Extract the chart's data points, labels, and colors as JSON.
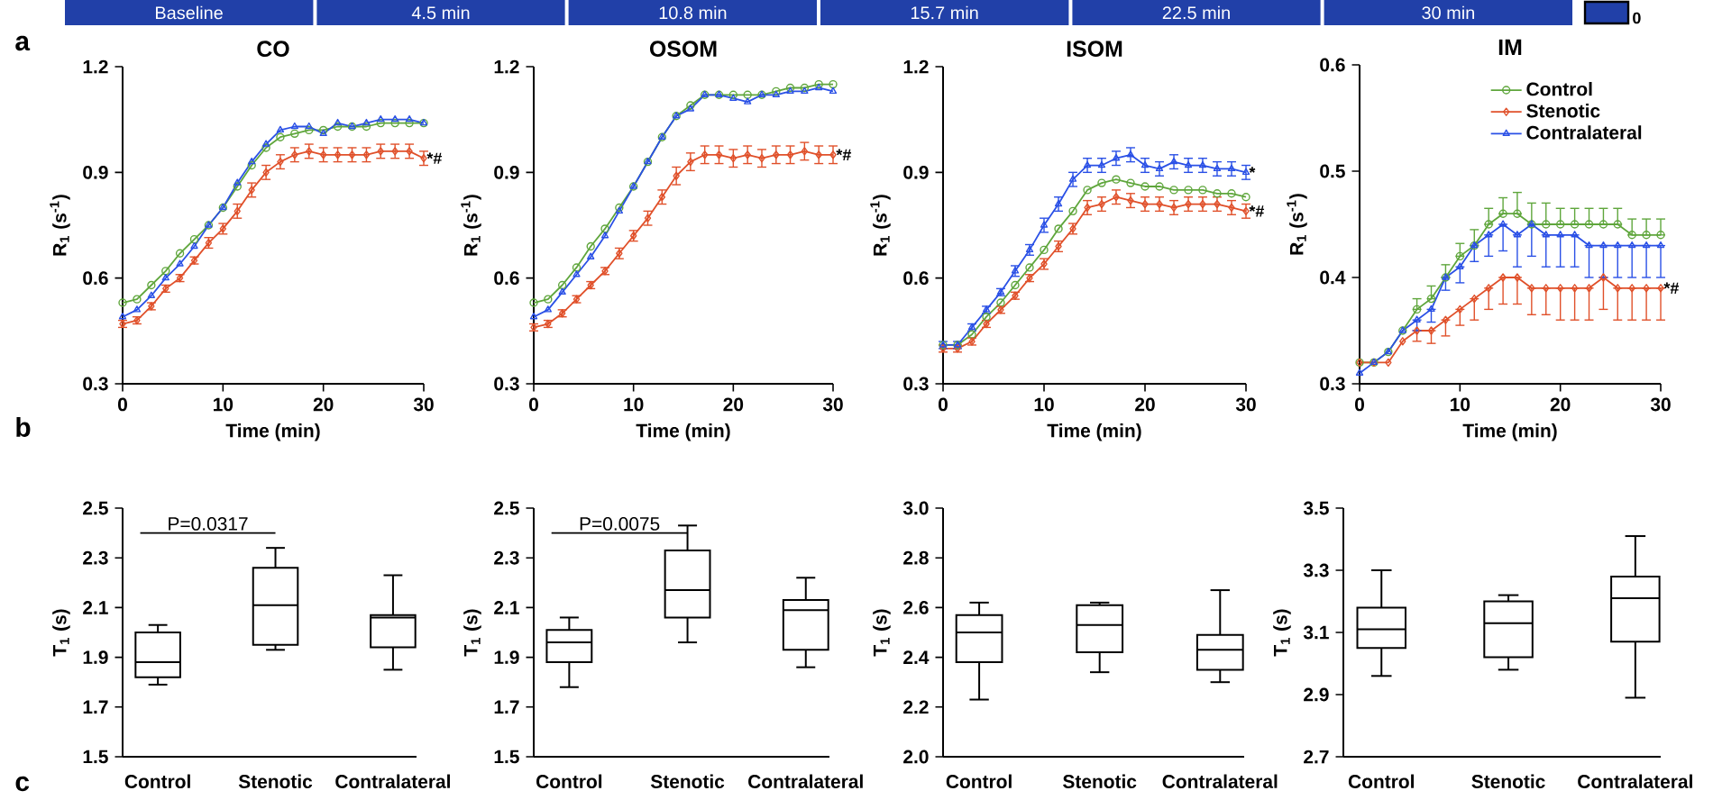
{
  "chart_data": [
    {
      "type": "other",
      "annotations": [
        "Baseline",
        "4.5 min",
        "10.8 min",
        "15.7 min",
        "22.5 min",
        "30 min",
        "0",
        "a",
        "b",
        "c"
      ]
    },
    {
      "type": "line",
      "title": "CO",
      "xlabel": "Time (min)",
      "ylabel": "R$_{1}$ (s$^{-1}$)",
      "xlim": [
        0,
        30
      ],
      "ylim": [
        0.3,
        1.2
      ],
      "xticks": [
        0,
        10,
        20,
        30
      ],
      "yticks": [
        0.3,
        0.6,
        0.9,
        1.2
      ],
      "x": [
        0,
        1.43,
        2.86,
        4.29,
        5.71,
        7.14,
        8.57,
        10,
        11.43,
        12.86,
        14.29,
        15.71,
        17.14,
        18.57,
        20,
        21.43,
        22.86,
        24.29,
        25.71,
        27.14,
        28.57,
        30
      ],
      "series": [
        {
          "color": "#5fa63c",
          "marker": "circle",
          "values": [
            0.53,
            0.54,
            0.58,
            0.62,
            0.67,
            0.71,
            0.75,
            0.8,
            0.86,
            0.92,
            0.97,
            1.0,
            1.01,
            1.02,
            1.02,
            1.03,
            1.03,
            1.03,
            1.04,
            1.04,
            1.04,
            1.04
          ]
        },
        {
          "color": "#e0502a",
          "marker": "diamond",
          "values": [
            0.47,
            0.48,
            0.52,
            0.57,
            0.6,
            0.65,
            0.7,
            0.74,
            0.79,
            0.85,
            0.9,
            0.93,
            0.95,
            0.96,
            0.95,
            0.95,
            0.95,
            0.95,
            0.96,
            0.96,
            0.96,
            0.94
          ],
          "errors": [
            0.01,
            0.01,
            0.01,
            0.01,
            0.01,
            0.01,
            0.015,
            0.015,
            0.02,
            0.02,
            0.02,
            0.02,
            0.02,
            0.02,
            0.02,
            0.02,
            0.02,
            0.02,
            0.02,
            0.02,
            0.02,
            0.02
          ]
        },
        {
          "color": "#2a50e6",
          "marker": "triangle",
          "values": [
            0.49,
            0.51,
            0.55,
            0.6,
            0.64,
            0.69,
            0.75,
            0.8,
            0.87,
            0.93,
            0.98,
            1.02,
            1.03,
            1.03,
            1.01,
            1.04,
            1.03,
            1.04,
            1.05,
            1.05,
            1.05,
            1.04
          ]
        }
      ],
      "annotations": [
        "*#"
      ]
    },
    {
      "type": "line",
      "title": "OSOM",
      "xlabel": "Time (min)",
      "ylabel": "R$_{1}$ (s$^{-1}$)",
      "xlim": [
        0,
        30
      ],
      "ylim": [
        0.3,
        1.2
      ],
      "xticks": [
        0,
        10,
        20,
        30
      ],
      "yticks": [
        0.3,
        0.6,
        0.9,
        1.2
      ],
      "x": [
        0,
        1.43,
        2.86,
        4.29,
        5.71,
        7.14,
        8.57,
        10,
        11.43,
        12.86,
        14.29,
        15.71,
        17.14,
        18.57,
        20,
        21.43,
        22.86,
        24.29,
        25.71,
        27.14,
        28.57,
        30
      ],
      "series": [
        {
          "color": "#5fa63c",
          "marker": "circle",
          "values": [
            0.53,
            0.54,
            0.58,
            0.63,
            0.69,
            0.74,
            0.8,
            0.86,
            0.93,
            1.0,
            1.06,
            1.09,
            1.12,
            1.12,
            1.12,
            1.12,
            1.12,
            1.13,
            1.14,
            1.14,
            1.15,
            1.15
          ]
        },
        {
          "color": "#e0502a",
          "marker": "diamond",
          "values": [
            0.46,
            0.47,
            0.5,
            0.54,
            0.58,
            0.62,
            0.67,
            0.72,
            0.77,
            0.83,
            0.89,
            0.93,
            0.95,
            0.95,
            0.94,
            0.95,
            0.94,
            0.95,
            0.95,
            0.96,
            0.95,
            0.95
          ],
          "errors": [
            0.01,
            0.01,
            0.01,
            0.01,
            0.01,
            0.01,
            0.015,
            0.015,
            0.02,
            0.02,
            0.025,
            0.025,
            0.025,
            0.025,
            0.025,
            0.025,
            0.025,
            0.025,
            0.025,
            0.025,
            0.025,
            0.025
          ]
        },
        {
          "color": "#2a50e6",
          "marker": "triangle",
          "values": [
            0.49,
            0.51,
            0.56,
            0.61,
            0.66,
            0.72,
            0.79,
            0.86,
            0.93,
            1.0,
            1.06,
            1.08,
            1.12,
            1.12,
            1.11,
            1.1,
            1.12,
            1.12,
            1.13,
            1.13,
            1.14,
            1.13
          ]
        }
      ],
      "annotations": [
        "*#"
      ]
    },
    {
      "type": "line",
      "title": "ISOM",
      "xlabel": "Time (min)",
      "ylabel": "R$_{1}$ (s$^{-1}$)",
      "xlim": [
        0,
        30
      ],
      "ylim": [
        0.3,
        1.2
      ],
      "xticks": [
        0,
        10,
        20,
        30
      ],
      "yticks": [
        0.3,
        0.6,
        0.9,
        1.2
      ],
      "x": [
        0,
        1.43,
        2.86,
        4.29,
        5.71,
        7.14,
        8.57,
        10,
        11.43,
        12.86,
        14.29,
        15.71,
        17.14,
        18.57,
        20,
        21.43,
        22.86,
        24.29,
        25.71,
        27.14,
        28.57,
        30
      ],
      "series": [
        {
          "color": "#5fa63c",
          "marker": "circle",
          "values": [
            0.41,
            0.41,
            0.44,
            0.49,
            0.53,
            0.58,
            0.63,
            0.68,
            0.74,
            0.79,
            0.85,
            0.87,
            0.88,
            0.87,
            0.86,
            0.86,
            0.85,
            0.85,
            0.85,
            0.84,
            0.84,
            0.83
          ]
        },
        {
          "color": "#e0502a",
          "marker": "diamond",
          "values": [
            0.4,
            0.4,
            0.42,
            0.47,
            0.51,
            0.55,
            0.6,
            0.64,
            0.69,
            0.74,
            0.8,
            0.81,
            0.83,
            0.82,
            0.81,
            0.81,
            0.8,
            0.81,
            0.81,
            0.81,
            0.8,
            0.79
          ],
          "errors": [
            0.01,
            0.01,
            0.01,
            0.01,
            0.01,
            0.01,
            0.01,
            0.015,
            0.015,
            0.015,
            0.02,
            0.02,
            0.02,
            0.02,
            0.02,
            0.02,
            0.02,
            0.02,
            0.02,
            0.02,
            0.02,
            0.02
          ]
        },
        {
          "color": "#2a50e6",
          "marker": "triangle",
          "values": [
            0.41,
            0.41,
            0.46,
            0.51,
            0.56,
            0.62,
            0.68,
            0.75,
            0.81,
            0.88,
            0.92,
            0.92,
            0.94,
            0.95,
            0.92,
            0.91,
            0.93,
            0.92,
            0.92,
            0.91,
            0.91,
            0.9
          ],
          "errors": [
            0.01,
            0.01,
            0.01,
            0.01,
            0.01,
            0.015,
            0.015,
            0.02,
            0.02,
            0.02,
            0.02,
            0.02,
            0.02,
            0.02,
            0.02,
            0.02,
            0.02,
            0.02,
            0.02,
            0.02,
            0.02,
            0.02
          ]
        }
      ],
      "annotations": [
        "*",
        "*#"
      ]
    },
    {
      "type": "line",
      "title": "IM",
      "xlabel": "Time (min)",
      "ylabel": "R$_{1}$ (s$^{-1}$)",
      "xlim": [
        0,
        30
      ],
      "ylim": [
        0.3,
        0.6
      ],
      "xticks": [
        0,
        10,
        20,
        30
      ],
      "yticks": [
        0.3,
        0.4,
        0.5,
        0.6
      ],
      "legend": "top right",
      "x": [
        0,
        1.43,
        2.86,
        4.29,
        5.71,
        7.14,
        8.57,
        10,
        11.43,
        12.86,
        14.29,
        15.71,
        17.14,
        18.57,
        20,
        21.43,
        22.86,
        24.29,
        25.71,
        27.14,
        28.57,
        30
      ],
      "series": [
        {
          "name": "Control",
          "color": "#5fa63c",
          "marker": "circle",
          "values": [
            0.32,
            0.32,
            0.33,
            0.35,
            0.37,
            0.38,
            0.4,
            0.42,
            0.43,
            0.45,
            0.46,
            0.46,
            0.45,
            0.45,
            0.45,
            0.45,
            0.45,
            0.45,
            0.45,
            0.44,
            0.44,
            0.44
          ],
          "errors": [
            null,
            null,
            null,
            null,
            [
              0.37,
              0.38
            ],
            [
              0.38,
              0.392
            ],
            [
              0.4,
              0.412
            ],
            [
              0.42,
              0.432
            ],
            [
              0.43,
              0.445
            ],
            [
              0.45,
              0.465
            ],
            [
              0.46,
              0.475
            ],
            [
              0.46,
              0.48
            ],
            [
              0.45,
              0.47
            ],
            [
              0.45,
              0.47
            ],
            [
              0.45,
              0.465
            ],
            [
              0.45,
              0.465
            ],
            [
              0.45,
              0.465
            ],
            [
              0.45,
              0.465
            ],
            [
              0.45,
              0.465
            ],
            [
              0.44,
              0.455
            ],
            [
              0.44,
              0.455
            ],
            [
              0.44,
              0.455
            ]
          ]
        },
        {
          "name": "Stenotic",
          "color": "#e0502a",
          "marker": "diamond",
          "values": [
            0.32,
            0.32,
            0.32,
            0.34,
            0.35,
            0.35,
            0.36,
            0.37,
            0.38,
            0.39,
            0.4,
            0.4,
            0.39,
            0.39,
            0.39,
            0.39,
            0.39,
            0.4,
            0.39,
            0.39,
            0.39,
            0.39
          ],
          "errors": [
            null,
            null,
            null,
            null,
            [
              0.34,
              0.35
            ],
            [
              0.338,
              0.35
            ],
            [
              0.345,
              0.36
            ],
            [
              0.355,
              0.37
            ],
            [
              0.36,
              0.38
            ],
            [
              0.37,
              0.39
            ],
            [
              0.375,
              0.4
            ],
            [
              0.375,
              0.4
            ],
            [
              0.365,
              0.39
            ],
            [
              0.365,
              0.39
            ],
            [
              0.36,
              0.39
            ],
            [
              0.36,
              0.39
            ],
            [
              0.36,
              0.39
            ],
            [
              0.37,
              0.4
            ],
            [
              0.36,
              0.39
            ],
            [
              0.36,
              0.39
            ],
            [
              0.36,
              0.39
            ],
            [
              0.36,
              0.39
            ]
          ]
        },
        {
          "name": "Contralateral",
          "color": "#2a50e6",
          "marker": "triangle",
          "values": [
            0.31,
            0.32,
            0.33,
            0.35,
            0.36,
            0.37,
            0.4,
            0.41,
            0.43,
            0.44,
            0.45,
            0.44,
            0.45,
            0.44,
            0.44,
            0.44,
            0.43,
            0.43,
            0.43,
            0.43,
            0.43,
            0.43
          ],
          "errors": [
            null,
            null,
            null,
            null,
            [
              0.35,
              0.36
            ],
            [
              0.358,
              0.37
            ],
            [
              0.388,
              0.4
            ],
            [
              0.395,
              0.41
            ],
            [
              0.415,
              0.43
            ],
            [
              0.42,
              0.44
            ],
            [
              0.425,
              0.45
            ],
            [
              0.41,
              0.44
            ],
            [
              0.42,
              0.45
            ],
            [
              0.41,
              0.44
            ],
            [
              0.41,
              0.44
            ],
            [
              0.41,
              0.44
            ],
            [
              0.4,
              0.43
            ],
            [
              0.4,
              0.43
            ],
            [
              0.4,
              0.43
            ],
            [
              0.4,
              0.43
            ],
            [
              0.4,
              0.43
            ],
            [
              0.4,
              0.43
            ]
          ]
        }
      ],
      "annotations": [
        "*#"
      ]
    },
    {
      "type": "box",
      "ylabel": "T$_{1}$ (s)",
      "categories": [
        "Control",
        "Stenotic",
        "Contralateral"
      ],
      "ylim": [
        1.5,
        2.5
      ],
      "yticks": [
        1.5,
        1.7,
        1.9,
        2.1,
        2.3,
        2.5
      ],
      "boxes": [
        {
          "low": 1.79,
          "q1": 1.82,
          "median": 1.88,
          "q3": 2.0,
          "high": 2.03
        },
        {
          "low": 1.93,
          "q1": 1.95,
          "median": 2.11,
          "q3": 2.26,
          "high": 2.34
        },
        {
          "low": 1.85,
          "q1": 1.94,
          "median": 2.06,
          "q3": 2.07,
          "high": 2.23
        }
      ],
      "annotations": [
        "P=0.0317"
      ]
    },
    {
      "type": "box",
      "ylabel": "T$_{1}$ (s)",
      "categories": [
        "Control",
        "Stenotic",
        "Contralateral"
      ],
      "ylim": [
        1.5,
        2.5
      ],
      "yticks": [
        1.5,
        1.7,
        1.9,
        2.1,
        2.3,
        2.5
      ],
      "boxes": [
        {
          "low": 1.78,
          "q1": 1.88,
          "median": 1.96,
          "q3": 2.01,
          "high": 2.06
        },
        {
          "low": 1.96,
          "q1": 2.06,
          "median": 2.17,
          "q3": 2.33,
          "high": 2.43
        },
        {
          "low": 1.86,
          "q1": 1.93,
          "median": 2.09,
          "q3": 2.13,
          "high": 2.22
        }
      ],
      "annotations": [
        "P=0.0075"
      ]
    },
    {
      "type": "box",
      "ylabel": "T$_{1}$ (s)",
      "categories": [
        "Control",
        "Stenotic",
        "Contralateral"
      ],
      "ylim": [
        2.0,
        3.0
      ],
      "yticks": [
        {
          "value": 2.0,
          "label": "2.0"
        },
        2.2,
        2.4,
        2.6,
        2.8,
        {
          "value": 3.0,
          "label": "3.0"
        }
      ],
      "boxes": [
        {
          "low": 2.23,
          "q1": 2.38,
          "median": 2.5,
          "q3": 2.57,
          "high": 2.62
        },
        {
          "low": 2.34,
          "q1": 2.42,
          "median": 2.53,
          "q3": 2.61,
          "high": 2.62
        },
        {
          "low": 2.3,
          "q1": 2.35,
          "median": 2.43,
          "q3": 2.49,
          "high": 2.67
        }
      ]
    },
    {
      "type": "box",
      "ylabel": "T$_{1}$ (s)",
      "categories": [
        "Control",
        "Stenotic",
        "Contralateral"
      ],
      "ylim": [
        2.7,
        3.5
      ],
      "yticks": [
        2.7,
        2.9,
        3.1,
        3.3,
        3.5
      ],
      "boxes": [
        {
          "low": 2.96,
          "q1": 3.05,
          "median": 3.11,
          "q3": 3.18,
          "high": 3.3
        },
        {
          "low": 2.98,
          "q1": 3.02,
          "median": 3.13,
          "q3": 3.2,
          "high": 3.22
        },
        {
          "low": 2.89,
          "q1": 3.07,
          "median": 3.21,
          "q3": 3.28,
          "high": 3.41
        }
      ]
    }
  ]
}
